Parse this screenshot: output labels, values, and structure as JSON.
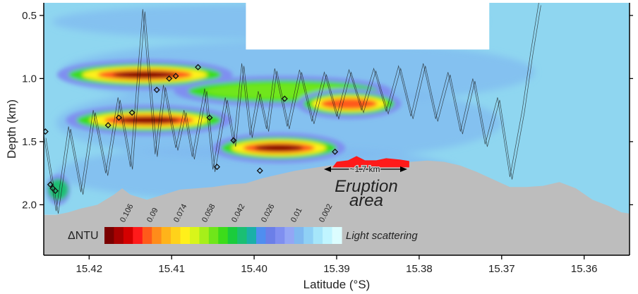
{
  "chart_data": {
    "type": "heatmap",
    "title": "",
    "xlabel": "Latitude (°S)",
    "ylabel": "Depth (km)",
    "xlim": [
      15.4255,
      15.3545
    ],
    "ylim": [
      0.4,
      2.4
    ],
    "x_ticks": [
      15.42,
      15.41,
      15.4,
      15.39,
      15.38,
      15.37,
      15.36
    ],
    "x_tick_labels": [
      "15.42",
      "15.41",
      "15.40",
      "15.39",
      "15.38",
      "15.37",
      "15.36"
    ],
    "y_ticks": [
      0.5,
      1.0,
      1.5,
      2.0
    ],
    "y_tick_labels": [
      "0.5",
      "1.0",
      "1.5",
      "2.0"
    ],
    "colors": {
      "background_scatter": "#8fd6f0",
      "plume_high": "#8b0000",
      "plume_mid": "#33cc00",
      "plume_low": "#6b7fe8",
      "seafloor": "#bdbdbd",
      "eruption": "#ff1a1a",
      "no_data": "#ffffff"
    },
    "colorbar": {
      "label": "ΔNTU",
      "caption": "Light scattering",
      "tick_values": [
        0.106,
        0.09,
        0.074,
        0.058,
        0.042,
        0.026,
        0.01,
        0.002
      ],
      "tick_labels": [
        "0.106",
        "0.09",
        "0.074",
        "0.058",
        "0.042",
        "0.026",
        "0.01",
        "0.002"
      ],
      "colors": [
        "#7a0000",
        "#a80000",
        "#d40000",
        "#ff1a1a",
        "#ff5a1a",
        "#ff8c1a",
        "#ffb31a",
        "#ffd21a",
        "#fff01a",
        "#d8f51a",
        "#a6ef1a",
        "#6fe61a",
        "#3cdc1a",
        "#1acc3c",
        "#1abf73",
        "#1ab0a8",
        "#4f8ef0",
        "#6b7fe8",
        "#7f8ff0",
        "#93a6f5",
        "#7fb8f0",
        "#8fd0f5",
        "#a6e6fa",
        "#c0f5ff",
        "#dcfdff"
      ]
    },
    "plume_layers": [
      {
        "center_depth_km": 0.97,
        "lat_start": 15.4225,
        "lat_end": 15.404,
        "peak_value": 0.106
      },
      {
        "center_depth_km": 1.1,
        "lat_start": 15.408,
        "lat_end": 15.385,
        "peak_value": 0.058
      },
      {
        "center_depth_km": 1.2,
        "lat_start": 15.394,
        "lat_end": 15.383,
        "peak_value": 0.09
      },
      {
        "center_depth_km": 1.33,
        "lat_start": 15.4215,
        "lat_end": 15.404,
        "peak_value": 0.106
      },
      {
        "center_depth_km": 1.55,
        "lat_start": 15.404,
        "lat_end": 15.39,
        "peak_value": 0.106
      },
      {
        "center_depth_km": 1.88,
        "lat_start": 15.425,
        "lat_end": 15.4225,
        "peak_value": 0.042
      }
    ],
    "no_data_regions": [
      {
        "lat_start": 15.401,
        "lat_end": 15.3715,
        "depth_start_km": 0.4,
        "depth_end_km": 0.77
      }
    ],
    "seafloor_profile": {
      "lat": [
        15.4255,
        15.424,
        15.4225,
        15.421,
        15.419,
        15.417,
        15.416,
        15.415,
        15.413,
        15.411,
        15.409,
        15.407,
        15.405,
        15.403,
        15.401,
        15.399,
        15.397,
        15.395,
        15.393,
        15.391,
        15.389,
        15.387,
        15.385,
        15.383,
        15.381,
        15.379,
        15.377,
        15.375,
        15.373,
        15.371,
        15.369,
        15.367,
        15.365,
        15.363,
        15.361,
        15.359,
        15.357,
        15.3555,
        15.3545
      ],
      "depth_km": [
        2.08,
        2.08,
        2.06,
        2.03,
        2.0,
        1.92,
        1.87,
        1.92,
        1.96,
        1.92,
        1.88,
        1.87,
        1.86,
        1.84,
        1.83,
        1.79,
        1.76,
        1.73,
        1.71,
        1.69,
        1.68,
        1.67,
        1.67,
        1.67,
        1.66,
        1.65,
        1.66,
        1.69,
        1.74,
        1.8,
        1.86,
        1.86,
        1.85,
        1.82,
        1.87,
        1.96,
        2.01,
        2.06,
        2.07
      ]
    },
    "tow_track_lat": [
      15.4255,
      15.424,
      15.4225,
      15.421,
      15.4195,
      15.418,
      15.4165,
      15.415,
      15.4135,
      15.412,
      15.411,
      15.4095,
      15.4085,
      15.4075,
      15.406,
      15.405,
      15.4035,
      15.4025,
      15.4015,
      15.4005,
      15.3995,
      15.3985,
      15.3975,
      15.396,
      15.3945,
      15.393,
      15.3915,
      15.39,
      15.3885,
      15.387,
      15.3855,
      15.384,
      15.3825,
      15.381,
      15.3795,
      15.378,
      15.3765,
      15.375,
      15.3735,
      15.372,
      15.3705,
      15.369,
      15.3675,
      15.3665,
      15.3655
    ],
    "tow_track_depth_km": [
      1.45,
      2.05,
      1.38,
      1.9,
      1.25,
      1.75,
      1.15,
      1.7,
      0.45,
      1.6,
      1.05,
      1.55,
      1.25,
      1.62,
      1.08,
      1.72,
      1.15,
      1.52,
      0.88,
      1.45,
      1.1,
      1.4,
      0.92,
      1.38,
      0.93,
      1.34,
      0.95,
      1.3,
      0.93,
      1.25,
      0.92,
      1.26,
      0.9,
      1.3,
      0.88,
      1.32,
      0.95,
      1.42,
      1.0,
      1.52,
      1.15,
      1.78,
      1.25,
      0.8,
      0.4
    ],
    "sample_points": [
      {
        "lat": 15.4253,
        "depth_km": 1.42
      },
      {
        "lat": 15.4247,
        "depth_km": 1.84
      },
      {
        "lat": 15.4244,
        "depth_km": 1.87
      },
      {
        "lat": 15.4241,
        "depth_km": 1.89
      },
      {
        "lat": 15.4177,
        "depth_km": 1.37
      },
      {
        "lat": 15.4164,
        "depth_km": 1.31
      },
      {
        "lat": 15.4148,
        "depth_km": 1.27
      },
      {
        "lat": 15.4118,
        "depth_km": 1.09
      },
      {
        "lat": 15.4103,
        "depth_km": 1.0
      },
      {
        "lat": 15.4095,
        "depth_km": 0.98
      },
      {
        "lat": 15.4068,
        "depth_km": 0.91
      },
      {
        "lat": 15.4054,
        "depth_km": 1.31
      },
      {
        "lat": 15.4045,
        "depth_km": 1.7
      },
      {
        "lat": 15.4025,
        "depth_km": 1.49
      },
      {
        "lat": 15.3993,
        "depth_km": 1.73
      },
      {
        "lat": 15.3963,
        "depth_km": 1.16
      },
      {
        "lat": 15.3902,
        "depth_km": 1.58
      }
    ],
    "eruption": {
      "label_line1": "Eruption",
      "label_line2": "area",
      "width_label": "~1.7 km",
      "lat_start": 15.3905,
      "lat_end": 15.3812,
      "depth_km": 1.67
    }
  }
}
